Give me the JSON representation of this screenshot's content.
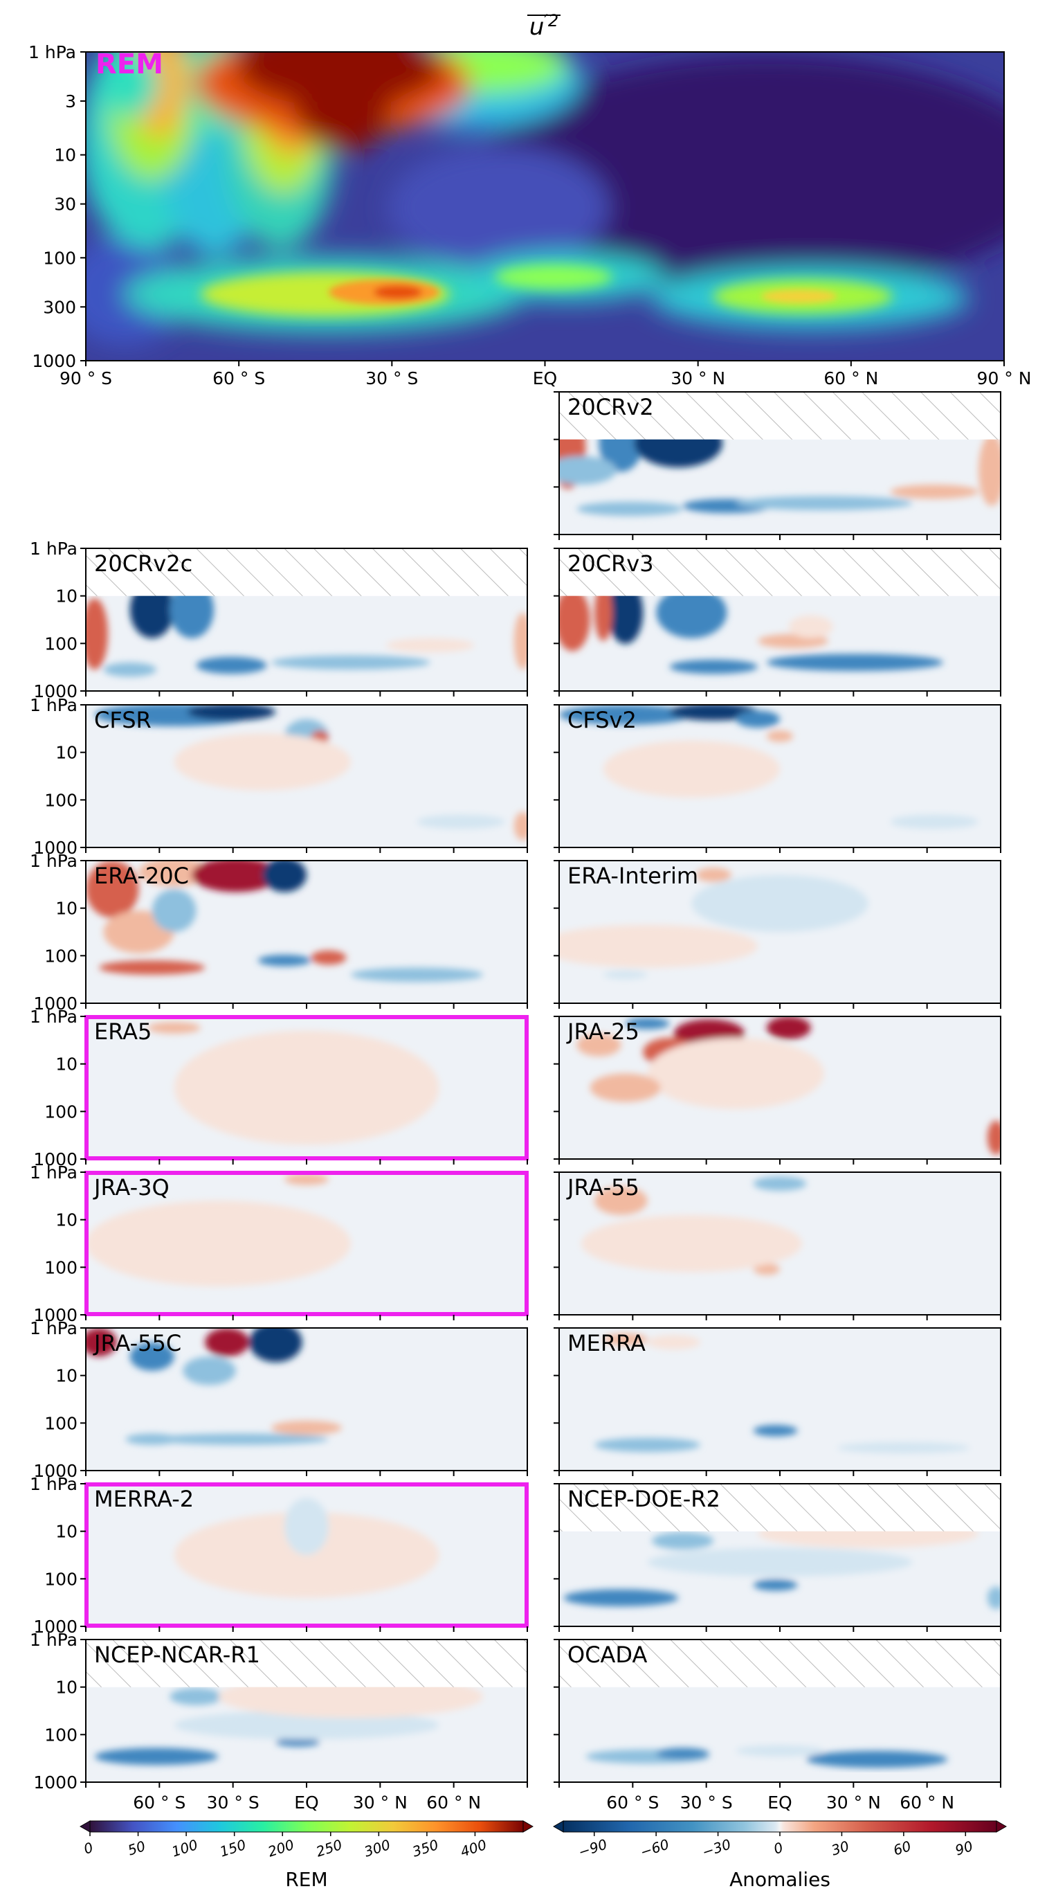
{
  "figure": {
    "title": "u'²",
    "title_main": "u",
    "title_sup": "′2"
  },
  "chart_data": {
    "type": "heatmap",
    "x_axis": {
      "range": [
        -90,
        90
      ],
      "ticks": [
        -90,
        -60,
        -30,
        0,
        30,
        60,
        90
      ],
      "tick_labels_top": [
        "90 ° S",
        "60 ° S",
        "30 ° S",
        "EQ",
        "30 ° N",
        "60 ° N",
        "90 ° N"
      ],
      "tick_labels_bottom": [
        "60 ° S",
        "30 ° S",
        "EQ",
        "30 ° N",
        "60 ° N"
      ],
      "bottom_tick_values": [
        -60,
        -30,
        0,
        30,
        60
      ]
    },
    "y_axis": {
      "scale": "log",
      "range_hPa": [
        1000,
        1
      ],
      "tick_labels_top": [
        "1 hPa",
        "3",
        "10",
        "30",
        "100",
        "300",
        "1000"
      ],
      "tick_values_top": [
        1,
        3,
        10,
        30,
        100,
        300,
        1000
      ],
      "tick_labels_small": [
        "1 hPa",
        "10",
        "100",
        "1000"
      ],
      "tick_values_small": [
        1,
        10,
        100,
        1000
      ]
    },
    "reference": {
      "name": "REM",
      "label_color": "#ee22ee"
    },
    "panels": [
      {
        "name": "20CRv2",
        "col": 1,
        "row": 0,
        "top_hPa": 10,
        "highlight": false,
        "y_labels": false
      },
      {
        "name": "20CRv2c",
        "col": 0,
        "row": 1,
        "top_hPa": 10,
        "highlight": false,
        "y_labels": true
      },
      {
        "name": "20CRv3",
        "col": 1,
        "row": 1,
        "top_hPa": 10,
        "highlight": false,
        "y_labels": false
      },
      {
        "name": "CFSR",
        "col": 0,
        "row": 2,
        "top_hPa": 1,
        "highlight": false,
        "y_labels": true
      },
      {
        "name": "CFSv2",
        "col": 1,
        "row": 2,
        "top_hPa": 1,
        "highlight": false,
        "y_labels": false
      },
      {
        "name": "ERA-20C",
        "col": 0,
        "row": 3,
        "top_hPa": 1,
        "highlight": false,
        "y_labels": true
      },
      {
        "name": "ERA-Interim",
        "col": 1,
        "row": 3,
        "top_hPa": 1,
        "highlight": false,
        "y_labels": false
      },
      {
        "name": "ERA5",
        "col": 0,
        "row": 4,
        "top_hPa": 1,
        "highlight": true,
        "y_labels": true
      },
      {
        "name": "JRA-25",
        "col": 1,
        "row": 4,
        "top_hPa": 1,
        "highlight": false,
        "y_labels": false
      },
      {
        "name": "JRA-3Q",
        "col": 0,
        "row": 5,
        "top_hPa": 1,
        "highlight": true,
        "y_labels": true
      },
      {
        "name": "JRA-55",
        "col": 1,
        "row": 5,
        "top_hPa": 1,
        "highlight": false,
        "y_labels": false
      },
      {
        "name": "JRA-55C",
        "col": 0,
        "row": 6,
        "top_hPa": 1,
        "highlight": false,
        "y_labels": true
      },
      {
        "name": "MERRA",
        "col": 1,
        "row": 6,
        "top_hPa": 1,
        "highlight": false,
        "y_labels": false
      },
      {
        "name": "MERRA-2",
        "col": 0,
        "row": 7,
        "top_hPa": 1,
        "highlight": true,
        "y_labels": true
      },
      {
        "name": "NCEP-DOE-R2",
        "col": 1,
        "row": 7,
        "top_hPa": 10,
        "highlight": false,
        "y_labels": false
      },
      {
        "name": "NCEP-NCAR-R1",
        "col": 0,
        "row": 8,
        "top_hPa": 10,
        "highlight": false,
        "y_labels": true
      },
      {
        "name": "OCADA",
        "col": 1,
        "row": 8,
        "top_hPa": 10,
        "highlight": false,
        "y_labels": false
      }
    ],
    "colorbars": [
      {
        "title": "REM",
        "colormap": "turbo",
        "range": [
          0,
          450
        ],
        "ticks": [
          0,
          50,
          100,
          150,
          200,
          250,
          300,
          350,
          400
        ],
        "tick_labels": [
          "0",
          "50",
          "100",
          "150",
          "200",
          "250",
          "300",
          "350",
          "400"
        ],
        "extend": "both"
      },
      {
        "title": "Anomalies",
        "colormap": "RdBu_r",
        "range": [
          -105,
          105
        ],
        "ticks": [
          -90,
          -60,
          -30,
          0,
          30,
          60,
          90
        ],
        "tick_labels": [
          "−90",
          "−60",
          "−30",
          "0",
          "30",
          "60",
          "90"
        ],
        "extend": "both"
      }
    ]
  },
  "colors": {
    "highlight_frame": "#ee22ee",
    "hatch": "#bbbbbb",
    "anomaly_background": "#eef2f7",
    "rem_background": "#3a2a7a"
  }
}
